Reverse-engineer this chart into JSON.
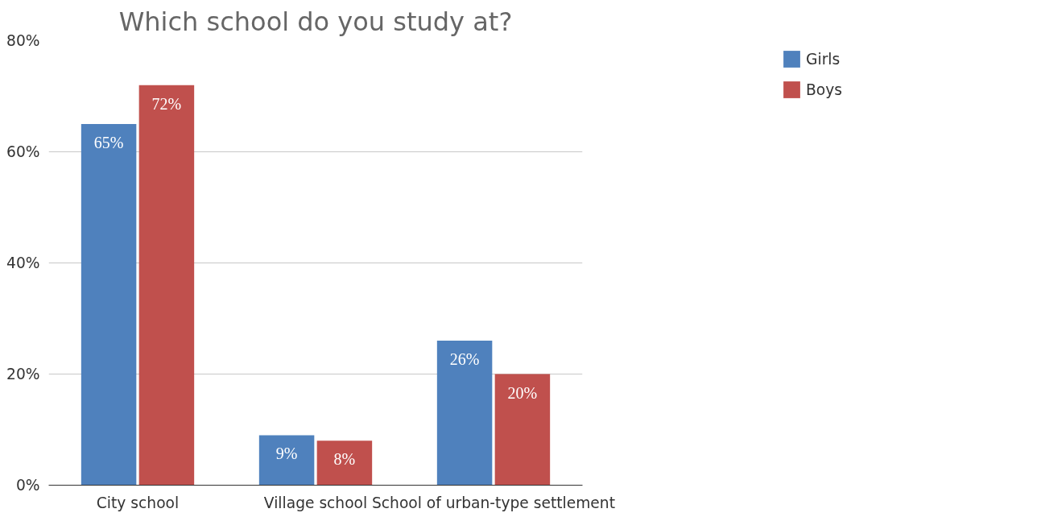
{
  "chart_data": {
    "type": "bar",
    "title": "Which school do you study at?",
    "categories": [
      "City school",
      "Village school",
      "School of urban-type settlement"
    ],
    "series": [
      {
        "name": "Girls",
        "color": "#4f81bd",
        "values": [
          65,
          9,
          26
        ],
        "value_labels": [
          "65%",
          "9%",
          "26%"
        ]
      },
      {
        "name": "Boys",
        "color": "#c0504d",
        "values": [
          72,
          8,
          20
        ],
        "value_labels": [
          "72%",
          "8%",
          "20%"
        ]
      }
    ],
    "ylim": [
      0,
      80
    ],
    "yticks": [
      {
        "value": 0,
        "label": "0%"
      },
      {
        "value": 20,
        "label": "20%"
      },
      {
        "value": 40,
        "label": "40%"
      },
      {
        "value": 60,
        "label": "60%"
      },
      {
        "value": 80,
        "label": "80%"
      }
    ],
    "grid": "y",
    "legend": "top right"
  }
}
